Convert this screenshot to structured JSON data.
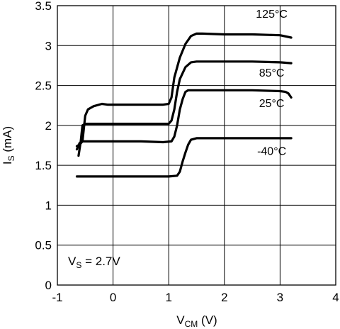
{
  "chart_data": {
    "type": "line",
    "xlabel": {
      "main": "V",
      "sub": "CM",
      "unit": " (V)"
    },
    "ylabel": {
      "main": "I",
      "sub": "S",
      "unit": " (mA)"
    },
    "xlim": [
      -1,
      4
    ],
    "ylim": [
      0,
      3.5
    ],
    "xticks": [
      -1,
      0,
      1,
      2,
      3,
      4
    ],
    "yticks": [
      0,
      0.5,
      1,
      1.5,
      2,
      2.5,
      3,
      3.5
    ],
    "xtick_labels": [
      "-1",
      "0",
      "1",
      "2",
      "3",
      "4"
    ],
    "ytick_labels": [
      "0",
      "0.5",
      "1",
      "1.5",
      "2",
      "2.5",
      "3",
      "3.5"
    ],
    "grid": true,
    "annotation": {
      "main": "V",
      "sub": "S",
      "rest": " = 2.7V"
    },
    "series": [
      {
        "name": "125°C",
        "x": [
          -0.65,
          -0.6,
          -0.55,
          -0.5,
          -0.45,
          -0.35,
          -0.2,
          -0.1,
          0.2,
          0.6,
          0.9,
          1.0,
          1.05,
          1.1,
          1.2,
          1.3,
          1.4,
          1.5,
          1.6,
          2.0,
          2.5,
          3.0,
          3.2
        ],
        "y": [
          1.74,
          1.76,
          1.8,
          2.12,
          2.2,
          2.24,
          2.27,
          2.26,
          2.26,
          2.26,
          2.26,
          2.27,
          2.35,
          2.6,
          2.85,
          3.02,
          3.12,
          3.15,
          3.15,
          3.14,
          3.14,
          3.13,
          3.1
        ]
      },
      {
        "name": "85°C",
        "x": [
          -0.62,
          -0.58,
          -0.55,
          -0.5,
          -0.4,
          0.0,
          0.5,
          0.9,
          1.0,
          1.05,
          1.1,
          1.15,
          1.2,
          1.3,
          1.4,
          1.5,
          2.0,
          2.5,
          3.0,
          3.2
        ],
        "y": [
          1.62,
          1.8,
          2.0,
          2.02,
          2.02,
          2.02,
          2.02,
          2.02,
          2.02,
          2.06,
          2.2,
          2.42,
          2.58,
          2.73,
          2.79,
          2.8,
          2.8,
          2.8,
          2.79,
          2.78
        ]
      },
      {
        "name": "25°C",
        "x": [
          -0.65,
          -0.6,
          -0.55,
          -0.5,
          0.0,
          0.5,
          0.9,
          1.05,
          1.1,
          1.15,
          1.2,
          1.25,
          1.3,
          1.35,
          1.45,
          1.6,
          2.0,
          2.5,
          3.0,
          3.1,
          3.15,
          3.2
        ],
        "y": [
          1.7,
          1.78,
          1.8,
          1.8,
          1.8,
          1.8,
          1.79,
          1.8,
          1.86,
          2.0,
          2.2,
          2.33,
          2.42,
          2.44,
          2.44,
          2.44,
          2.44,
          2.44,
          2.43,
          2.42,
          2.4,
          2.35
        ]
      },
      {
        "name": "-40°C",
        "x": [
          -0.65,
          0.0,
          0.5,
          1.0,
          1.15,
          1.2,
          1.25,
          1.3,
          1.35,
          1.4,
          1.5,
          1.6,
          2.0,
          2.5,
          3.0,
          3.2
        ],
        "y": [
          1.36,
          1.36,
          1.36,
          1.36,
          1.37,
          1.42,
          1.55,
          1.66,
          1.76,
          1.82,
          1.84,
          1.84,
          1.84,
          1.84,
          1.84,
          1.84
        ]
      }
    ]
  }
}
